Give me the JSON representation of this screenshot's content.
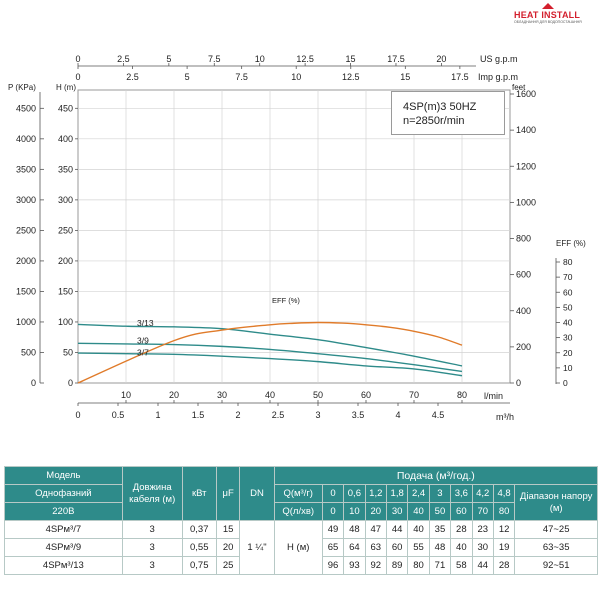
{
  "logo": {
    "name": "HEAT INSTALL",
    "tagline": "ОБЛАДНАННЯ ДЛЯ ВОДОПОСТАЧАННЯ"
  },
  "model_box": {
    "line1": "4SP(m)3  50HZ",
    "line2": "n=2850r/min"
  },
  "chart_data": {
    "type": "line",
    "colors": {
      "head": "#2e8b8a",
      "eff": "#e07b2a",
      "grid": "#d3d3d3"
    },
    "y_left_H": {
      "label": "H (m)",
      "ticks": [
        0,
        50,
        100,
        150,
        200,
        250,
        300,
        350,
        400,
        450
      ],
      "range": [
        0,
        480
      ]
    },
    "y_left_P": {
      "label": "P (KPa)",
      "ticks": [
        0,
        500,
        1000,
        1500,
        2000,
        2500,
        3000,
        3500,
        4000,
        4500
      ],
      "range": [
        0,
        4800
      ]
    },
    "y_right_feet": {
      "label": "feet",
      "ticks": [
        0,
        200,
        400,
        600,
        800,
        1000,
        1200,
        1400,
        1600
      ]
    },
    "y_right_eff": {
      "label": "EFF (%)",
      "ticks": [
        0,
        10,
        20,
        30,
        40,
        50,
        60,
        70,
        80
      ]
    },
    "x_lmin": {
      "label": "l/min",
      "ticks": [
        10,
        20,
        30,
        40,
        50,
        60,
        70,
        80
      ],
      "range": [
        0,
        85
      ]
    },
    "x_m3h": {
      "label": "m³/h",
      "ticks": [
        "0",
        "0.5",
        "1",
        "1.5",
        "2",
        "2.5",
        "3",
        "3.5",
        "4",
        "4.5"
      ]
    },
    "x_us": {
      "label": "US g.p.m",
      "ticks": [
        "0",
        "2.5",
        "5",
        "7.5",
        "10",
        "12.5",
        "15",
        "17.5",
        "20"
      ]
    },
    "x_imp": {
      "label": "Imp g.p.m",
      "ticks": [
        "0",
        "2.5",
        "5",
        "7.5",
        "10",
        "12.5",
        "15",
        "17.5"
      ]
    },
    "series": [
      {
        "name": "3/7",
        "x": [
          0,
          10,
          20,
          30,
          40,
          50,
          60,
          70,
          80
        ],
        "y": [
          49,
          48,
          47,
          44,
          40,
          35,
          28,
          23,
          12
        ]
      },
      {
        "name": "3/9",
        "x": [
          0,
          10,
          20,
          30,
          40,
          50,
          60,
          70,
          80
        ],
        "y": [
          65,
          64,
          63,
          60,
          55,
          48,
          40,
          30,
          19
        ]
      },
      {
        "name": "3/13",
        "x": [
          0,
          10,
          20,
          30,
          40,
          50,
          60,
          70,
          80
        ],
        "y": [
          96,
          93,
          92,
          89,
          80,
          71,
          58,
          44,
          28
        ]
      },
      {
        "name": "EFF (%)",
        "x": [
          0,
          20,
          30,
          40,
          45,
          50,
          55,
          60,
          65,
          70,
          75,
          80
        ],
        "eff": [
          0,
          28,
          35,
          38.5,
          39.5,
          40,
          39.6,
          38.5,
          36.8,
          34.2,
          30.5,
          25
        ]
      }
    ]
  },
  "table": {
    "h_model": "Модель",
    "h_phase": "Однофазний",
    "h_voltage": "220В",
    "h_cable": "Довжина кабеля (м)",
    "h_kw": "кВт",
    "h_uf": "μF",
    "h_dn": "DN",
    "h_supply": "Подача (м³/год.)",
    "h_q1": "Q(м³/г)",
    "h_q2": "Q(л/хв)",
    "q_m3h": [
      "0",
      "0,6",
      "1,2",
      "1,8",
      "2,4",
      "3",
      "3,6",
      "4,2",
      "4,8"
    ],
    "q_lmin": [
      "0",
      "10",
      "20",
      "30",
      "40",
      "50",
      "60",
      "70",
      "80"
    ],
    "h_range": "Діапазон напору (м)",
    "dn_value": "1 ¼\"",
    "h_label": "H (м)",
    "rows": [
      {
        "model": "4SPм³/7",
        "cable": "3",
        "kw": "0,37",
        "uf": "15",
        "h": [
          "49",
          "48",
          "47",
          "44",
          "40",
          "35",
          "28",
          "23",
          "12"
        ],
        "range": "47~25"
      },
      {
        "model": "4SPм³/9",
        "cable": "3",
        "kw": "0,55",
        "uf": "20",
        "h": [
          "65",
          "64",
          "63",
          "60",
          "55",
          "48",
          "40",
          "30",
          "19"
        ],
        "range": "63~35"
      },
      {
        "model": "4SPм³/13",
        "cable": "3",
        "kw": "0,75",
        "uf": "25",
        "h": [
          "96",
          "93",
          "92",
          "89",
          "80",
          "71",
          "58",
          "44",
          "28"
        ],
        "range": "92~51"
      }
    ]
  }
}
